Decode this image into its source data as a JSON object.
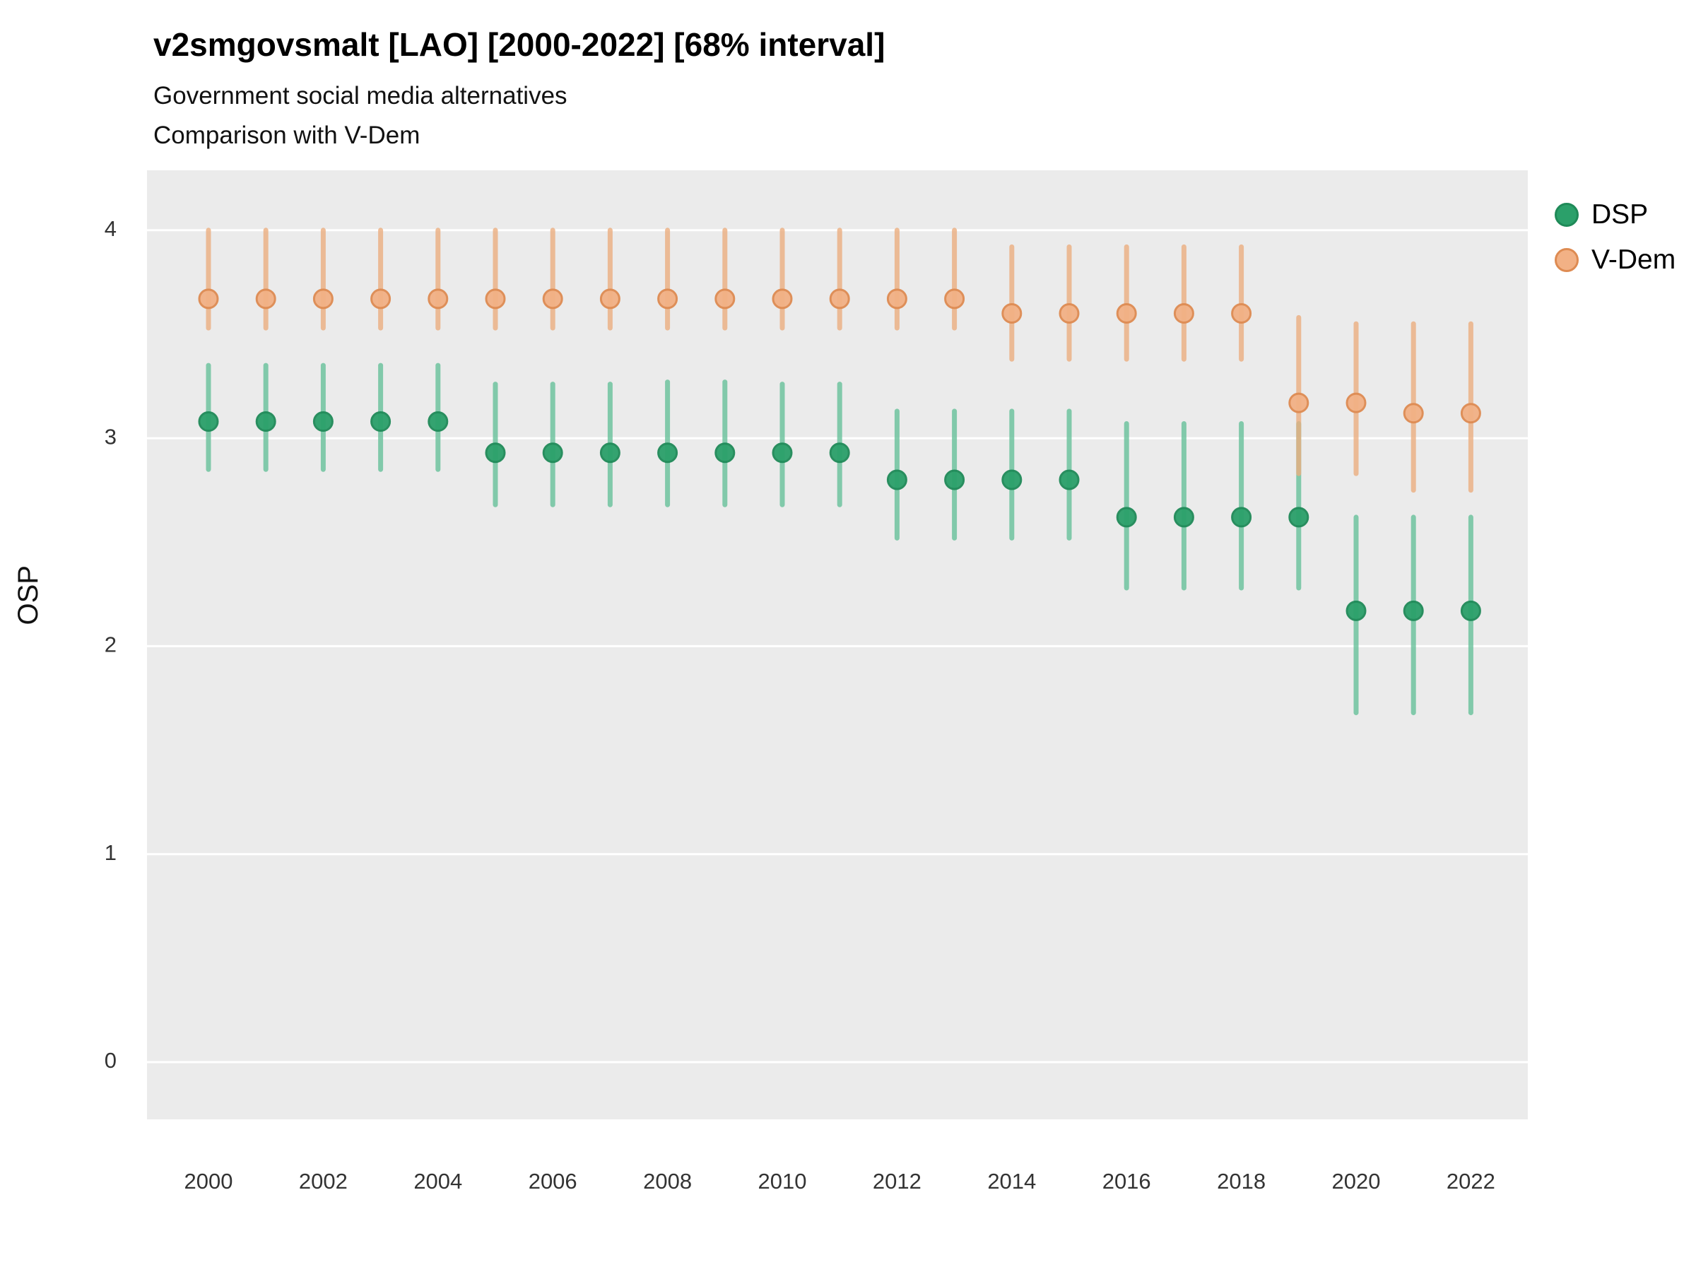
{
  "title": "v2smgovsmalt [LAO] [2000-2022] [68% interval]",
  "subtitle1": "Government social media alternatives",
  "subtitle2": "Comparison with V-Dem",
  "ylabel": "OSP",
  "panel_bg": "#EBEBEB",
  "grid_color": "#FFFFFF",
  "tick_color": "#333333",
  "legend": [
    {
      "label": "DSP",
      "fill": "#2BA06A",
      "stroke": "#1F8A58"
    },
    {
      "label": "V-Dem",
      "fill": "#F2B185",
      "stroke": "#DE8B52"
    }
  ],
  "chart_data": {
    "type": "pointrange",
    "title": "v2smgovsmalt [LAO] [2000-2022] [68% interval]",
    "subtitle": "Government social media alternatives — Comparison with V-Dem",
    "xlabel": "",
    "ylabel": "OSP",
    "interval": "68%",
    "grid": true,
    "legend_position": "right",
    "ylim": [
      -0.28,
      4.29
    ],
    "yticks": [
      0,
      1,
      2,
      3,
      4
    ],
    "xticks": [
      2000,
      2002,
      2004,
      2006,
      2008,
      2010,
      2012,
      2014,
      2016,
      2018,
      2020,
      2022
    ],
    "x": [
      2000,
      2001,
      2002,
      2003,
      2004,
      2005,
      2006,
      2007,
      2008,
      2009,
      2010,
      2011,
      2012,
      2013,
      2014,
      2015,
      2016,
      2017,
      2018,
      2019,
      2020,
      2021,
      2022
    ],
    "series": [
      {
        "name": "DSP",
        "point_fill": "#2BA06A",
        "point_stroke": "#1F8A58",
        "bar_color": "#67C19A",
        "y": [
          3.08,
          3.08,
          3.08,
          3.08,
          3.08,
          2.93,
          2.93,
          2.93,
          2.93,
          2.93,
          2.93,
          2.93,
          2.8,
          2.8,
          2.8,
          2.8,
          2.62,
          2.62,
          2.62,
          2.62,
          2.17,
          2.17,
          2.17
        ],
        "lo": [
          2.85,
          2.85,
          2.85,
          2.85,
          2.85,
          2.68,
          2.68,
          2.68,
          2.68,
          2.68,
          2.68,
          2.68,
          2.52,
          2.52,
          2.52,
          2.52,
          2.28,
          2.28,
          2.28,
          2.28,
          1.68,
          1.68,
          1.68
        ],
        "hi": [
          3.35,
          3.35,
          3.35,
          3.35,
          3.35,
          3.26,
          3.26,
          3.26,
          3.27,
          3.27,
          3.26,
          3.26,
          3.13,
          3.13,
          3.13,
          3.13,
          3.07,
          3.07,
          3.07,
          3.07,
          2.62,
          2.62,
          2.62
        ]
      },
      {
        "name": "V-Dem",
        "point_fill": "#F2B185",
        "point_stroke": "#DE8B52",
        "bar_color": "#ECAE80",
        "y": [
          3.67,
          3.67,
          3.67,
          3.67,
          3.67,
          3.67,
          3.67,
          3.67,
          3.67,
          3.67,
          3.67,
          3.67,
          3.67,
          3.67,
          3.6,
          3.6,
          3.6,
          3.6,
          3.6,
          3.17,
          3.17,
          3.12,
          3.12
        ],
        "lo": [
          3.53,
          3.53,
          3.53,
          3.53,
          3.53,
          3.53,
          3.53,
          3.53,
          3.53,
          3.53,
          3.53,
          3.53,
          3.53,
          3.53,
          3.38,
          3.38,
          3.38,
          3.38,
          3.38,
          2.83,
          2.83,
          2.75,
          2.75
        ],
        "hi": [
          4.0,
          4.0,
          4.0,
          4.0,
          4.0,
          4.0,
          4.0,
          4.0,
          4.0,
          4.0,
          4.0,
          4.0,
          4.0,
          4.0,
          3.92,
          3.92,
          3.92,
          3.92,
          3.92,
          3.58,
          3.55,
          3.55,
          3.55
        ]
      }
    ]
  }
}
